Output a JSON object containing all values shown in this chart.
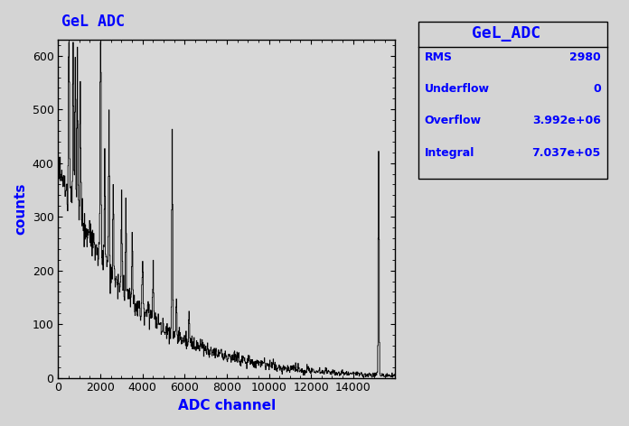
{
  "title_left": "GeL ADC",
  "title_right": "GeL_ADC",
  "xlabel": "ADC channel",
  "ylabel": "counts",
  "xlim": [
    0,
    16000
  ],
  "ylim": [
    0,
    630
  ],
  "xticks": [
    0,
    2000,
    4000,
    6000,
    8000,
    10000,
    12000,
    14000
  ],
  "yticks": [
    0,
    100,
    200,
    300,
    400,
    500,
    600
  ],
  "stats": {
    "RMS": "2980",
    "Underflow": "0",
    "Overflow": "3.992e+06",
    "Integral": "7.037e+05"
  },
  "background_color": "#d4d4d4",
  "plot_bg_color": "#d8d8d8",
  "line_color": "#000000",
  "title_color": "#0000ff",
  "stats_color": "#0000ff",
  "seed": 42,
  "n_bins": 800,
  "peak_channel": 15200
}
